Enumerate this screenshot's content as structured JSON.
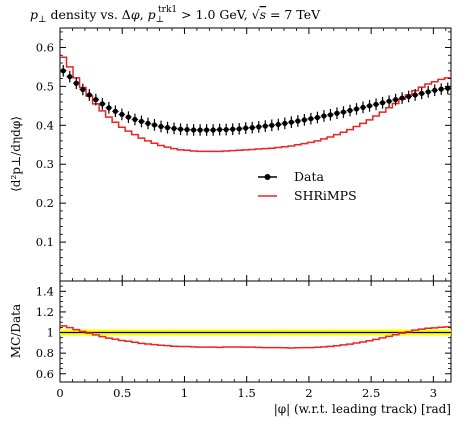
{
  "chart_data": {
    "type": "line",
    "title": "p⊥ density vs. Δφ, p⊥trk1 > 1.0 GeV, √s = 7 TeV",
    "title_parts": {
      "p": "p",
      "perp": "⊥",
      "mid": " density vs. Δ",
      "phi": "φ",
      "comma": ", ",
      "trk": "trk1",
      "gt": " > 1.0 GeV, ",
      "sqrt": "√",
      "s": "s",
      "eq": " = 7 TeV"
    },
    "ylabel": "⟨d²p⊥/dηdφ⟩",
    "xlabel": "|φ| (w.r.t. leading track) [rad]",
    "xlim": [
      0,
      3.1416
    ],
    "ylim": [
      0,
      0.65
    ],
    "x_ticks": [
      "0",
      "0.5",
      "1",
      "1.5",
      "2",
      "2.5",
      "3"
    ],
    "x_tick_values": [
      0,
      0.5,
      1,
      1.5,
      2,
      2.5,
      3
    ],
    "y_ticks": [
      "0.1",
      "0.2",
      "0.3",
      "0.4",
      "0.5",
      "0.6"
    ],
    "y_tick_values": [
      0.1,
      0.2,
      0.3,
      0.4,
      0.5,
      0.6
    ],
    "legend_position": "right",
    "series": [
      {
        "name": "Data",
        "style": "points",
        "color": "#000000",
        "x": [
          0.0262,
          0.0785,
          0.1309,
          0.1833,
          0.2356,
          0.288,
          0.3403,
          0.3927,
          0.4451,
          0.4974,
          0.5498,
          0.6021,
          0.6545,
          0.7069,
          0.7592,
          0.8116,
          0.8639,
          0.9163,
          0.9687,
          1.021,
          1.0734,
          1.1257,
          1.1781,
          1.2305,
          1.2828,
          1.3352,
          1.3875,
          1.4399,
          1.4923,
          1.5446,
          1.597,
          1.6493,
          1.7017,
          1.7541,
          1.8064,
          1.8588,
          1.9111,
          1.9635,
          2.0159,
          2.0682,
          2.1206,
          2.1729,
          2.2253,
          2.2777,
          2.33,
          2.3824,
          2.4347,
          2.4871,
          2.5395,
          2.5918,
          2.6442,
          2.6965,
          2.7489,
          2.8013,
          2.8536,
          2.906,
          2.9583,
          3.0107,
          3.0631,
          3.1154
        ],
        "y": [
          0.54,
          0.525,
          0.508,
          0.492,
          0.478,
          0.466,
          0.455,
          0.445,
          0.436,
          0.428,
          0.421,
          0.415,
          0.41,
          0.405,
          0.401,
          0.397,
          0.394,
          0.392,
          0.39,
          0.389,
          0.388,
          0.388,
          0.388,
          0.388,
          0.389,
          0.389,
          0.39,
          0.391,
          0.393,
          0.394,
          0.396,
          0.398,
          0.4,
          0.402,
          0.405,
          0.408,
          0.411,
          0.414,
          0.417,
          0.42,
          0.424,
          0.427,
          0.431,
          0.434,
          0.438,
          0.442,
          0.446,
          0.45,
          0.454,
          0.458,
          0.462,
          0.466,
          0.47,
          0.474,
          0.478,
          0.482,
          0.486,
          0.49,
          0.493,
          0.495
        ],
        "err": 0.015
      },
      {
        "name": "SHRiMPS",
        "style": "step",
        "color": "#ee2222",
        "x": [
          0.0262,
          0.0785,
          0.1309,
          0.1833,
          0.2356,
          0.288,
          0.3403,
          0.3927,
          0.4451,
          0.4974,
          0.5498,
          0.6021,
          0.6545,
          0.7069,
          0.7592,
          0.8116,
          0.8639,
          0.9163,
          0.9687,
          1.021,
          1.0734,
          1.1257,
          1.1781,
          1.2305,
          1.2828,
          1.3352,
          1.3875,
          1.4399,
          1.4923,
          1.5446,
          1.597,
          1.6493,
          1.7017,
          1.7541,
          1.8064,
          1.8588,
          1.9111,
          1.9635,
          2.0159,
          2.0682,
          2.1206,
          2.1729,
          2.2253,
          2.2777,
          2.33,
          2.3824,
          2.4347,
          2.4871,
          2.5395,
          2.5918,
          2.6442,
          2.6965,
          2.7489,
          2.8013,
          2.8536,
          2.906,
          2.9583,
          3.0107,
          3.0631,
          3.1154
        ],
        "y": [
          0.575,
          0.55,
          0.522,
          0.497,
          0.475,
          0.455,
          0.437,
          0.421,
          0.408,
          0.395,
          0.385,
          0.376,
          0.367,
          0.36,
          0.354,
          0.348,
          0.344,
          0.34,
          0.337,
          0.336,
          0.334,
          0.333,
          0.333,
          0.333,
          0.333,
          0.334,
          0.335,
          0.336,
          0.337,
          0.338,
          0.339,
          0.34,
          0.341,
          0.343,
          0.345,
          0.347,
          0.35,
          0.353,
          0.356,
          0.36,
          0.365,
          0.37,
          0.376,
          0.382,
          0.389,
          0.397,
          0.405,
          0.414,
          0.424,
          0.434,
          0.445,
          0.456,
          0.467,
          0.478,
          0.489,
          0.498,
          0.506,
          0.512,
          0.518,
          0.522
        ]
      }
    ],
    "ratio_panel": {
      "ylabel": "MC/Data",
      "ylim": [
        0.52,
        1.5
      ],
      "y_ticks": [
        "0.6",
        "0.8",
        "1",
        "1.2",
        "1.4"
      ],
      "y_tick_values": [
        0.6,
        0.8,
        1.0,
        1.2,
        1.4
      ],
      "band_color": "#ffff00",
      "band": 0.03,
      "series": [
        {
          "name": "SHRiMPS",
          "color": "#ee2222",
          "y": [
            1.065,
            1.048,
            1.028,
            1.01,
            0.994,
            0.977,
            0.96,
            0.946,
            0.936,
            0.923,
            0.915,
            0.906,
            0.895,
            0.889,
            0.883,
            0.877,
            0.873,
            0.867,
            0.864,
            0.864,
            0.861,
            0.858,
            0.858,
            0.858,
            0.856,
            0.859,
            0.859,
            0.859,
            0.858,
            0.858,
            0.856,
            0.854,
            0.853,
            0.853,
            0.852,
            0.85,
            0.852,
            0.853,
            0.854,
            0.857,
            0.861,
            0.866,
            0.872,
            0.88,
            0.888,
            0.898,
            0.908,
            0.92,
            0.934,
            0.948,
            0.963,
            0.979,
            0.994,
            1.008,
            1.023,
            1.033,
            1.041,
            1.045,
            1.051,
            1.055
          ]
        }
      ]
    }
  }
}
